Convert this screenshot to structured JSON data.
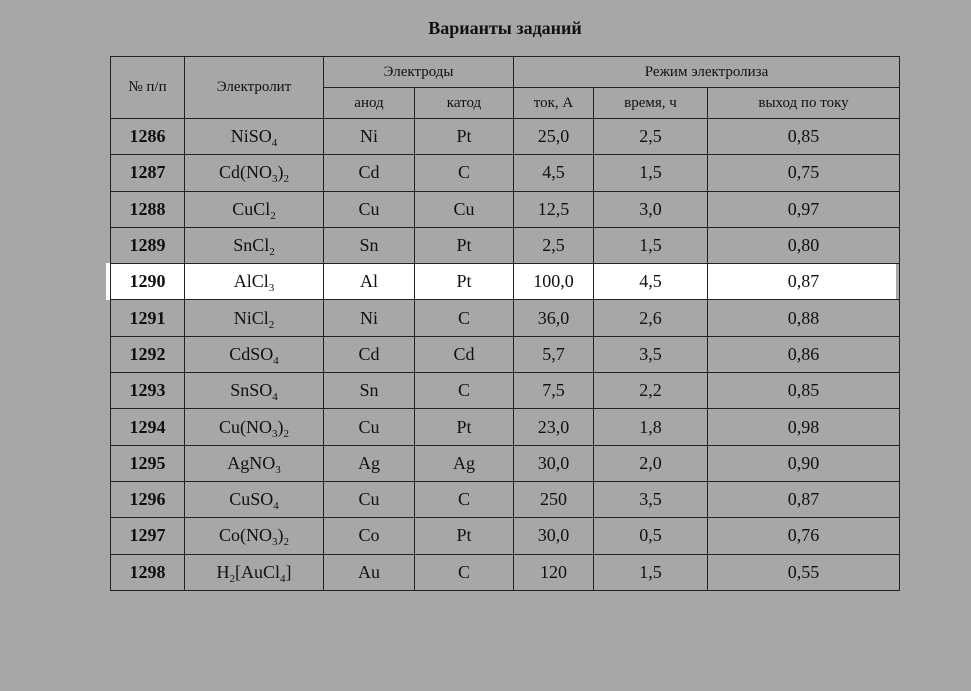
{
  "title": "Варианты заданий",
  "headers": {
    "num": "№ п/п",
    "electrolyte": "Электролит",
    "electrodes": "Электроды",
    "anode": "анод",
    "cathode": "катод",
    "mode": "Режим электролиза",
    "current": "ток, А",
    "time": "время, ч",
    "yield": "выход по току"
  },
  "rows": [
    {
      "num": "1286",
      "electrolyte": [
        [
          "Ni",
          ""
        ],
        [
          "SO",
          "4"
        ]
      ],
      "anode": "Ni",
      "cathode": "Pt",
      "current": "25,0",
      "time": "2,5",
      "yield": "0,85"
    },
    {
      "num": "1287",
      "electrolyte": [
        [
          "Cd(NO",
          "3"
        ],
        [
          ")",
          "2"
        ]
      ],
      "anode": "Cd",
      "cathode": "C",
      "current": "4,5",
      "time": "1,5",
      "yield": "0,75"
    },
    {
      "num": "1288",
      "electrolyte": [
        [
          "CuCl",
          "2"
        ]
      ],
      "anode": "Cu",
      "cathode": "Cu",
      "current": "12,5",
      "time": "3,0",
      "yield": "0,97"
    },
    {
      "num": "1289",
      "electrolyte": [
        [
          "SnCl",
          "2"
        ]
      ],
      "anode": "Sn",
      "cathode": "Pt",
      "current": "2,5",
      "time": "1,5",
      "yield": "0,80"
    },
    {
      "num": "1290",
      "electrolyte": [
        [
          "AlCl",
          "3"
        ]
      ],
      "anode": "Al",
      "cathode": "Pt",
      "current": "100,0",
      "time": "4,5",
      "yield": "0,87",
      "highlighted": true
    },
    {
      "num": "1291",
      "electrolyte": [
        [
          "NiCl",
          "2"
        ]
      ],
      "anode": "Ni",
      "cathode": "C",
      "current": "36,0",
      "time": "2,6",
      "yield": "0,88"
    },
    {
      "num": "1292",
      "electrolyte": [
        [
          "CdSO",
          "4"
        ]
      ],
      "anode": "Cd",
      "cathode": "Cd",
      "current": "5,7",
      "time": "3,5",
      "yield": "0,86"
    },
    {
      "num": "1293",
      "electrolyte": [
        [
          "SnSO",
          "4"
        ]
      ],
      "anode": "Sn",
      "cathode": "C",
      "current": "7,5",
      "time": "2,2",
      "yield": "0,85"
    },
    {
      "num": "1294",
      "electrolyte": [
        [
          "Cu(NO",
          "3"
        ],
        [
          ")",
          "2"
        ]
      ],
      "anode": "Cu",
      "cathode": "Pt",
      "current": "23,0",
      "time": "1,8",
      "yield": "0,98"
    },
    {
      "num": "1295",
      "electrolyte": [
        [
          "AgNO",
          "3"
        ]
      ],
      "anode": "Ag",
      "cathode": "Ag",
      "current": "30,0",
      "time": "2,0",
      "yield": "0,90"
    },
    {
      "num": "1296",
      "electrolyte": [
        [
          "CuSO",
          "4"
        ]
      ],
      "anode": "Cu",
      "cathode": "C",
      "current": "250",
      "time": "3,5",
      "yield": "0,87"
    },
    {
      "num": "1297",
      "electrolyte": [
        [
          "Co(NO",
          "3"
        ],
        [
          ")",
          "2"
        ]
      ],
      "anode": "Co",
      "cathode": "Pt",
      "current": "30,0",
      "time": "0,5",
      "yield": "0,76"
    },
    {
      "num": "1298",
      "electrolyte": [
        [
          "H",
          "2"
        ],
        [
          "[AuCl",
          "4"
        ],
        [
          "]",
          ""
        ]
      ],
      "anode": "Au",
      "cathode": "C",
      "current": "120",
      "time": "1,5",
      "yield": "0,55"
    }
  ]
}
